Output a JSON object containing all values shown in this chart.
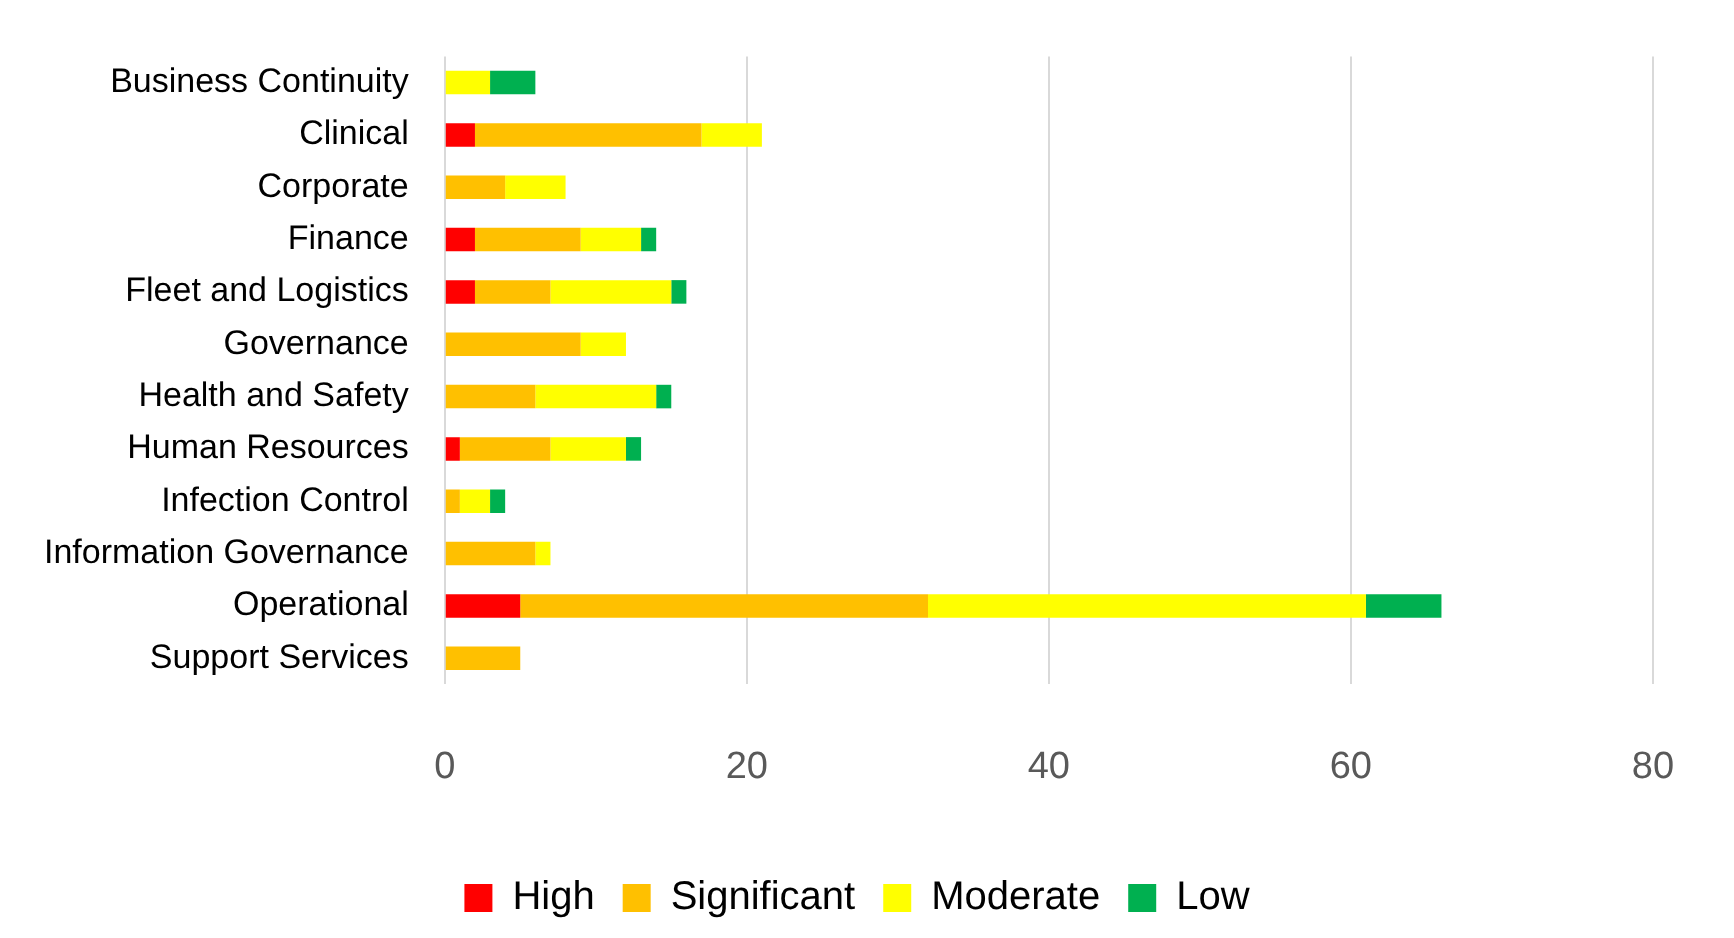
{
  "chart_data": {
    "type": "bar",
    "orientation": "horizontal",
    "stacked": true,
    "categories": [
      "Business Continuity",
      "Clinical",
      "Corporate",
      "Finance",
      "Fleet and Logistics",
      "Governance",
      "Health and Safety",
      "Human Resources",
      "Infection Control",
      "Information Governance",
      "Operational",
      "Support Services"
    ],
    "series": [
      {
        "name": "High",
        "color": "#ff0000",
        "values": [
          null,
          2,
          null,
          2,
          2,
          null,
          null,
          1,
          null,
          null,
          5,
          null
        ]
      },
      {
        "name": "Significant",
        "color": "#ffc000",
        "values": [
          null,
          15,
          4,
          7,
          5,
          9,
          6,
          6,
          1,
          6,
          27,
          5
        ]
      },
      {
        "name": "Moderate",
        "color": "#ffff00",
        "values": [
          3,
          4,
          4,
          4,
          8,
          3,
          8,
          5,
          2,
          1,
          29,
          null
        ]
      },
      {
        "name": "Low",
        "color": "#00b050",
        "values": [
          3,
          null,
          null,
          1,
          1,
          null,
          1,
          1,
          1,
          null,
          5,
          null
        ]
      }
    ],
    "xlim": [
      0,
      80
    ],
    "xticks": [
      0,
      20,
      40,
      60,
      80
    ],
    "grid": "x",
    "legend": "bottom"
  }
}
